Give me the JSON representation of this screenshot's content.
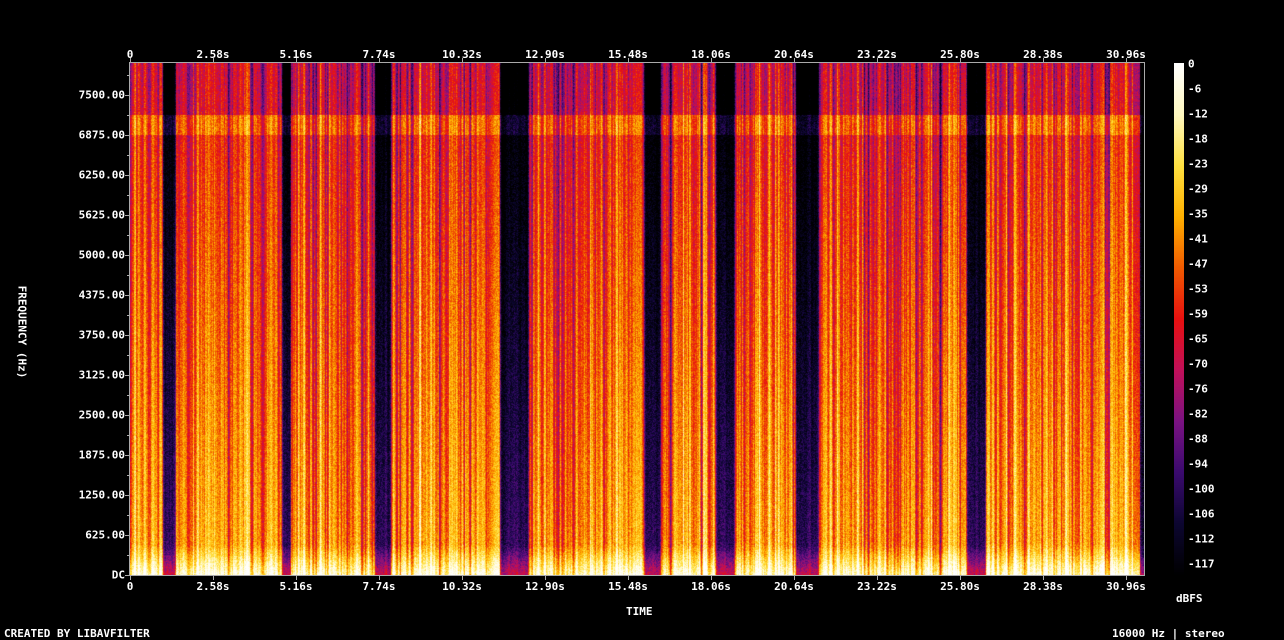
{
  "chart_data": {
    "type": "heatmap",
    "xlabel": "TIME",
    "ylabel": "FREQUENCY (Hz)",
    "x_ticks": [
      "0",
      "2.58s",
      "5.16s",
      "7.74s",
      "10.32s",
      "12.90s",
      "15.48s",
      "18.06s",
      "20.64s",
      "23.22s",
      "25.80s",
      "28.38s",
      "30.96s"
    ],
    "y_ticks": [
      "DC",
      "625.00",
      "1250.00",
      "1875.00",
      "2500.00",
      "3125.00",
      "3750.00",
      "4375.00",
      "5000.00",
      "5625.00",
      "6250.00",
      "6875.00",
      "7500.00"
    ],
    "x_range_s": [
      0,
      31.5
    ],
    "y_range_hz": [
      0,
      8000
    ],
    "colorbar": {
      "label": "dBFS",
      "ticks": [
        "0",
        "-6",
        "-12",
        "-18",
        "-23",
        "-29",
        "-35",
        "-41",
        "-47",
        "-53",
        "-59",
        "-65",
        "-70",
        "-76",
        "-82",
        "-88",
        "-94",
        "-100",
        "-106",
        "-112",
        "-117"
      ],
      "range_db": [
        -120,
        0
      ],
      "colors": [
        "#000000",
        "#0c0630",
        "#3a0a6e",
        "#7a1282",
        "#c0105a",
        "#e81010",
        "#f05a00",
        "#ffb000",
        "#ffe040",
        "#fff8c0",
        "#ffffff"
      ]
    },
    "low_energy_intervals_s": [
      [
        1.0,
        1.4
      ],
      [
        4.7,
        5.0
      ],
      [
        7.6,
        8.1
      ],
      [
        11.5,
        12.4
      ],
      [
        16.0,
        16.5
      ],
      [
        18.2,
        18.8
      ],
      [
        20.7,
        21.4
      ],
      [
        26.0,
        26.6
      ]
    ]
  },
  "footer": {
    "credit": "CREATED BY LIBAVFILTER",
    "info": "16000 Hz | stereo"
  }
}
